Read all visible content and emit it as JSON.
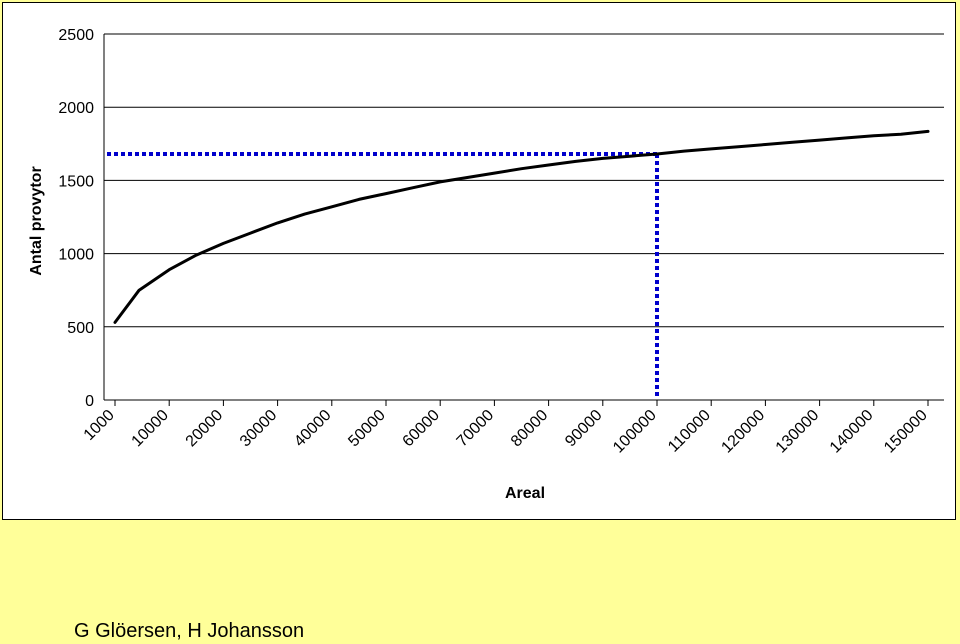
{
  "chart_data": {
    "type": "line",
    "title": "",
    "xlabel": "Areal",
    "ylabel": "Antal provytor",
    "y_ticks": [
      "0",
      "500",
      "1000",
      "1500",
      "2000",
      "2500"
    ],
    "ylim": [
      0,
      2500
    ],
    "x_tick_labels": [
      "1000",
      "10000",
      "20000",
      "30000",
      "40000",
      "50000",
      "60000",
      "70000",
      "80000",
      "90000",
      "100000",
      "110000",
      "120000",
      "130000",
      "140000",
      "150000"
    ],
    "grid": "horizontal",
    "legend": "none",
    "series": [
      {
        "points": [
          [
            1000,
            530
          ],
          [
            5000,
            750
          ],
          [
            10000,
            890
          ],
          [
            15000,
            990
          ],
          [
            20000,
            1070
          ],
          [
            25000,
            1140
          ],
          [
            30000,
            1210
          ],
          [
            35000,
            1270
          ],
          [
            40000,
            1320
          ],
          [
            45000,
            1370
          ],
          [
            50000,
            1410
          ],
          [
            55000,
            1450
          ],
          [
            60000,
            1490
          ],
          [
            65000,
            1520
          ],
          [
            70000,
            1550
          ],
          [
            75000,
            1580
          ],
          [
            80000,
            1605
          ],
          [
            85000,
            1630
          ],
          [
            90000,
            1650
          ],
          [
            95000,
            1665
          ],
          [
            100000,
            1680
          ],
          [
            105000,
            1700
          ],
          [
            110000,
            1715
          ],
          [
            115000,
            1730
          ],
          [
            120000,
            1745
          ],
          [
            125000,
            1760
          ],
          [
            130000,
            1775
          ],
          [
            135000,
            1790
          ],
          [
            140000,
            1805
          ],
          [
            145000,
            1815
          ],
          [
            150000,
            1835
          ]
        ],
        "color": "#000000"
      }
    ],
    "reference_lines": {
      "x": 100000,
      "y": 1680,
      "color": "#0000cc",
      "style": "dotted"
    }
  },
  "footer": {
    "authors": "G Glöersen, H Johansson"
  }
}
